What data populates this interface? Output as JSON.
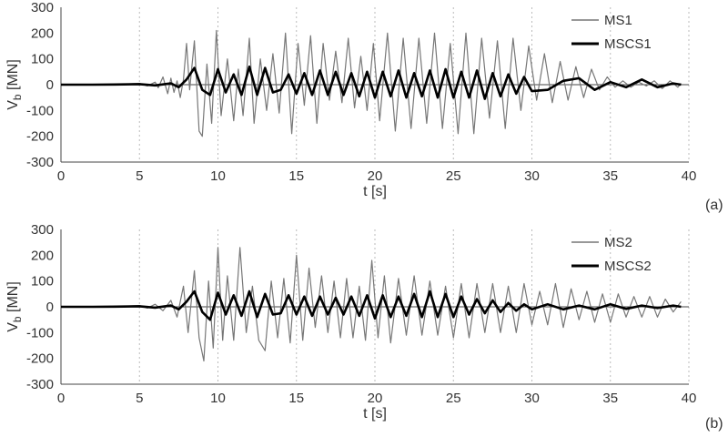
{
  "chart_data": [
    {
      "type": "line",
      "panel_label": "(a)",
      "xlabel": "t [s]",
      "ylabel_main": "V",
      "ylabel_sub": "b",
      "ylabel_unit": " [MN]",
      "xlim": [
        0,
        40
      ],
      "ylim": [
        -300,
        300
      ],
      "x_ticks": [
        0,
        5,
        10,
        15,
        20,
        25,
        30,
        35,
        40
      ],
      "y_ticks": [
        -300,
        -200,
        -100,
        0,
        100,
        200,
        300
      ],
      "grid": {
        "vertical_dotted": true,
        "horizontal": false,
        "zero_line": true
      },
      "legend_position": "top-right",
      "series": [
        {
          "name": "MS1",
          "color": "#777777",
          "x": [
            0,
            2,
            4,
            5,
            5.5,
            6,
            6.2,
            6.5,
            6.8,
            7.0,
            7.2,
            7.4,
            7.6,
            7.8,
            8.0,
            8.2,
            8.5,
            8.8,
            9.0,
            9.3,
            9.6,
            9.9,
            10.2,
            10.6,
            11.0,
            11.3,
            11.6,
            12.0,
            12.3,
            12.7,
            13.1,
            13.5,
            13.9,
            14.3,
            14.7,
            15.1,
            15.5,
            15.9,
            16.3,
            16.7,
            17.1,
            17.5,
            17.9,
            18.3,
            18.7,
            19.1,
            19.5,
            19.9,
            20.3,
            20.8,
            21.3,
            21.8,
            22.3,
            22.8,
            23.3,
            23.8,
            24.3,
            24.8,
            25.3,
            25.8,
            26.3,
            26.8,
            27.3,
            27.8,
            28.3,
            28.8,
            29.3,
            29.8,
            30.3,
            30.8,
            31.3,
            31.8,
            32.3,
            32.8,
            33.3,
            33.8,
            34.3,
            34.8,
            35.3,
            35.8,
            36.3,
            36.8,
            37.3,
            37.8,
            38.3,
            38.8,
            39.3,
            39.5
          ],
          "values": [
            0,
            0,
            2,
            5,
            -5,
            10,
            -12,
            30,
            -35,
            25,
            -30,
            15,
            -50,
            20,
            160,
            -20,
            170,
            -180,
            -200,
            80,
            -150,
            210,
            -120,
            100,
            -140,
            60,
            -120,
            180,
            -150,
            100,
            -100,
            120,
            -110,
            200,
            -190,
            160,
            -80,
            190,
            -150,
            160,
            -60,
            130,
            -70,
            180,
            -90,
            110,
            -100,
            160,
            -140,
            200,
            -180,
            180,
            -170,
            180,
            -150,
            200,
            -170,
            160,
            -190,
            200,
            -190,
            180,
            -130,
            170,
            -170,
            180,
            -100,
            150,
            -60,
            120,
            -70,
            90,
            -60,
            70,
            -50,
            60,
            -20,
            30,
            -10,
            15,
            -10,
            10,
            -5,
            15,
            -15,
            15,
            -10,
            5
          ]
        },
        {
          "name": "MSCS1",
          "color": "#000000",
          "x": [
            0,
            2,
            4,
            5,
            6,
            7,
            7.5,
            8.0,
            8.5,
            9.0,
            9.5,
            10.0,
            10.5,
            11.0,
            11.5,
            12.0,
            12.5,
            13.0,
            13.5,
            14.0,
            14.5,
            15.0,
            15.5,
            16.0,
            16.5,
            17.0,
            17.5,
            18.0,
            18.5,
            19.0,
            19.5,
            20.0,
            20.5,
            21.0,
            21.5,
            22.0,
            22.5,
            23.0,
            23.5,
            24.0,
            24.5,
            25.0,
            25.5,
            26.0,
            26.5,
            27.0,
            27.5,
            28.0,
            28.5,
            29.0,
            29.5,
            30.0,
            31,
            32,
            33,
            34,
            35,
            36,
            37,
            38,
            39,
            39.5
          ],
          "values": [
            0,
            0,
            1,
            2,
            -3,
            5,
            -10,
            20,
            65,
            -20,
            -40,
            60,
            -30,
            40,
            -40,
            70,
            -40,
            65,
            -30,
            -20,
            40,
            -35,
            45,
            -40,
            55,
            -40,
            50,
            -40,
            45,
            -45,
            50,
            -50,
            50,
            -45,
            55,
            -50,
            45,
            -45,
            55,
            -50,
            60,
            -50,
            50,
            -50,
            55,
            -55,
            45,
            -45,
            40,
            -35,
            30,
            -25,
            -20,
            15,
            25,
            -20,
            10,
            -10,
            20,
            -10,
            5,
            0
          ]
        }
      ]
    },
    {
      "type": "line",
      "panel_label": "(b)",
      "xlabel": "t [s]",
      "ylabel_main": "V",
      "ylabel_sub": "b",
      "ylabel_unit": " [MN]",
      "xlim": [
        0,
        40
      ],
      "ylim": [
        -300,
        300
      ],
      "x_ticks": [
        0,
        5,
        10,
        15,
        20,
        25,
        30,
        35,
        40
      ],
      "y_ticks": [
        -300,
        -200,
        -100,
        0,
        100,
        200,
        300
      ],
      "grid": {
        "vertical_dotted": true,
        "horizontal": false,
        "zero_line": true
      },
      "legend_position": "top-right",
      "series": [
        {
          "name": "MS2",
          "color": "#777777",
          "x": [
            0,
            2,
            4,
            5,
            5.5,
            6,
            6.5,
            7.0,
            7.4,
            7.8,
            8.1,
            8.5,
            8.8,
            9.1,
            9.4,
            9.7,
            10.0,
            10.3,
            10.6,
            11.0,
            11.4,
            11.8,
            12.2,
            12.6,
            13.0,
            13.4,
            13.8,
            14.2,
            14.6,
            15.0,
            15.4,
            15.8,
            16.2,
            16.6,
            17.0,
            17.4,
            17.8,
            18.2,
            18.6,
            19.0,
            19.4,
            19.8,
            20.2,
            20.6,
            21.0,
            21.5,
            22.0,
            22.5,
            23.0,
            23.5,
            24.0,
            24.5,
            25.0,
            25.5,
            26.0,
            26.5,
            27.0,
            27.5,
            28.0,
            28.5,
            29.0,
            29.5,
            30.0,
            30.5,
            31.0,
            31.5,
            32.0,
            32.5,
            33.0,
            33.5,
            34.0,
            34.5,
            35.0,
            35.5,
            36.0,
            36.5,
            37.0,
            37.5,
            38.0,
            38.5,
            39.0,
            39.5
          ],
          "values": [
            0,
            0,
            2,
            5,
            -5,
            10,
            -15,
            25,
            -40,
            80,
            -100,
            140,
            -120,
            -210,
            100,
            -160,
            230,
            -130,
            120,
            -130,
            230,
            -100,
            80,
            -130,
            -170,
            100,
            -120,
            110,
            -140,
            200,
            -130,
            150,
            -80,
            120,
            -100,
            100,
            -120,
            110,
            -120,
            80,
            -130,
            180,
            -120,
            120,
            -140,
            110,
            -110,
            120,
            -110,
            100,
            -110,
            80,
            -120,
            90,
            -120,
            90,
            -100,
            90,
            -100,
            80,
            -100,
            90,
            -70,
            60,
            -70,
            90,
            -80,
            70,
            -50,
            60,
            -60,
            50,
            -60,
            50,
            -40,
            40,
            -40,
            40,
            -40,
            30,
            -20,
            20
          ]
        },
        {
          "name": "MSCS2",
          "color": "#000000",
          "x": [
            0,
            2,
            4,
            5,
            6,
            7,
            7.5,
            8.0,
            8.5,
            9.0,
            9.5,
            10.0,
            10.5,
            11.0,
            11.5,
            12.0,
            12.5,
            13.0,
            13.5,
            14.0,
            14.5,
            15.0,
            15.5,
            16.0,
            16.5,
            17.0,
            17.5,
            18.0,
            18.5,
            19.0,
            19.5,
            20.0,
            20.5,
            21.0,
            21.5,
            22.0,
            22.5,
            23.0,
            23.5,
            24.0,
            24.5,
            25.0,
            25.5,
            26.0,
            26.5,
            27.0,
            27.5,
            28.0,
            28.5,
            29.0,
            29.5,
            30.0,
            31,
            32,
            33,
            34,
            35,
            36,
            37,
            38,
            39,
            39.5
          ],
          "values": [
            0,
            0,
            1,
            2,
            -3,
            5,
            -10,
            20,
            60,
            -20,
            -50,
            55,
            -30,
            45,
            -35,
            60,
            -40,
            50,
            -30,
            -25,
            45,
            -30,
            40,
            -35,
            40,
            -30,
            35,
            -30,
            40,
            -35,
            45,
            -45,
            45,
            -40,
            40,
            -35,
            50,
            -40,
            60,
            -40,
            50,
            -40,
            40,
            -30,
            30,
            -25,
            25,
            -20,
            15,
            -15,
            10,
            -10,
            10,
            -10,
            5,
            -10,
            10,
            -8,
            5,
            -5,
            5,
            0
          ]
        }
      ]
    }
  ]
}
